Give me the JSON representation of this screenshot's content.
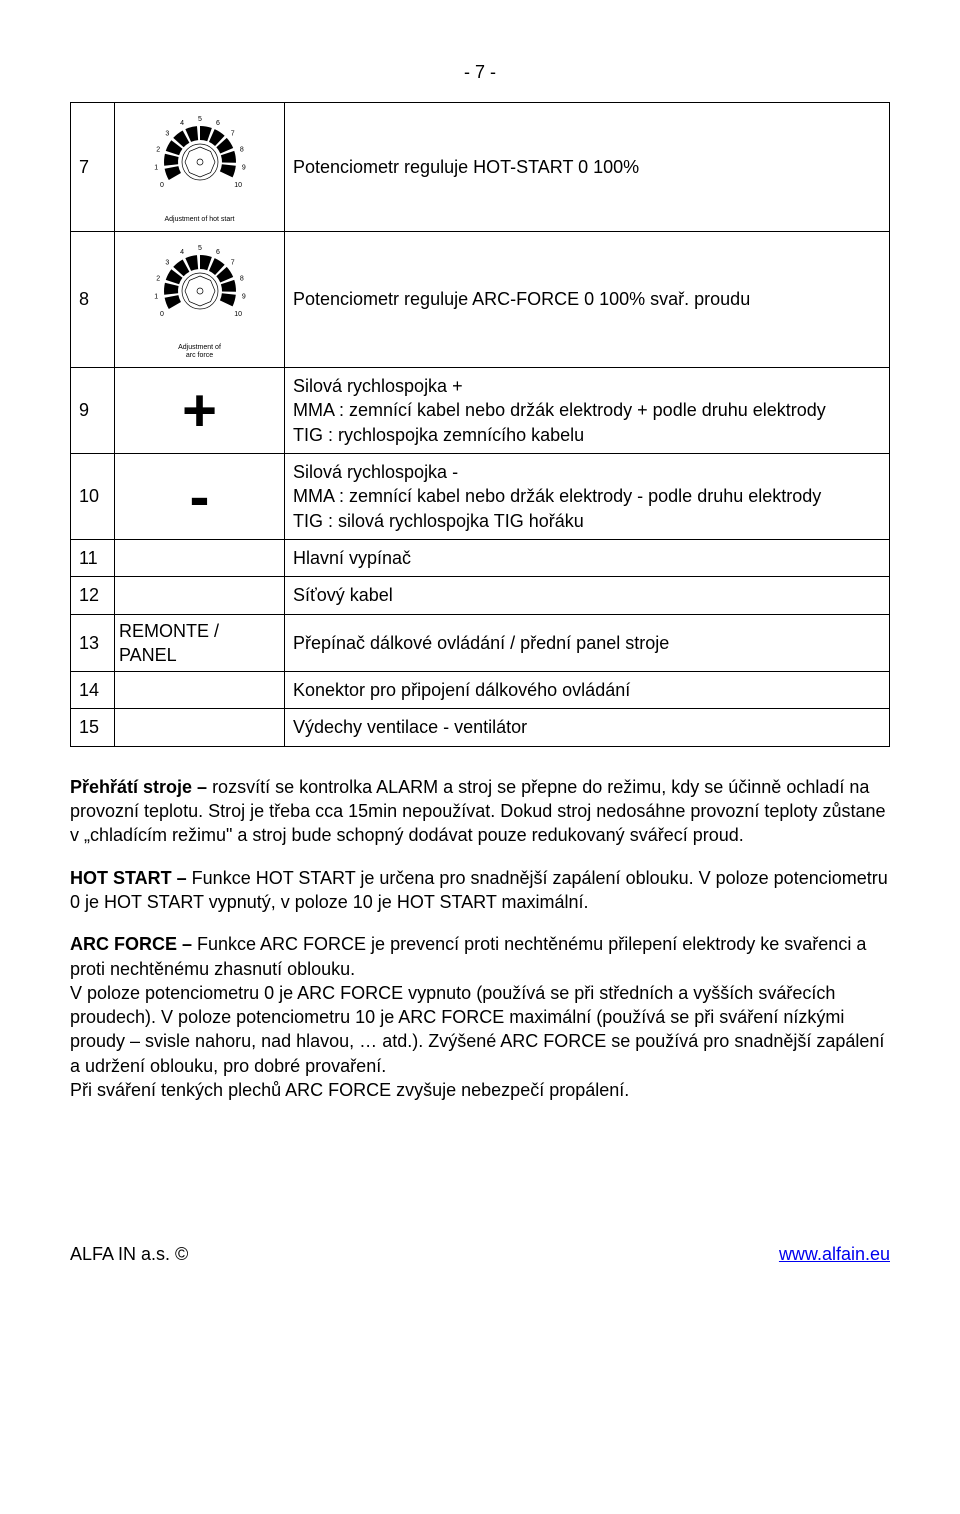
{
  "page_number": "- 7 -",
  "dial": {
    "ticks": [
      "0",
      "1",
      "2",
      "3",
      "4",
      "5",
      "6",
      "7",
      "8",
      "9",
      "10"
    ],
    "caption_hot": "Adjustment of hot start",
    "caption_arc_l1": "Adjustment of",
    "caption_arc_l2": "arc force",
    "tick_color": "#000000",
    "bg_color": "#ffffff"
  },
  "rows": [
    {
      "n": "7",
      "icon": "dial-hot",
      "desc": "Potenciometr reguluje HOT-START 0 100%"
    },
    {
      "n": "8",
      "icon": "dial-arc",
      "desc": "Potenciometr reguluje ARC-FORCE 0 100% svař. proudu"
    },
    {
      "n": "9",
      "icon": "plus",
      "desc": " Silová  rychlospojka +\nMMA : zemnící kabel nebo držák elektrody + podle druhu  elektrody\nTIG : rychlospojka zemnícího kabelu"
    },
    {
      "n": "10",
      "icon": "minus",
      "desc": "  Silová rychlospojka  -\nMMA : zemnící kabel nebo držák elektrody  - podle druhu  elektrody\nTIG : silová rychlospojka TIG  hořáku"
    },
    {
      "n": "11",
      "icon": "",
      "desc": "Hlavní vypínač"
    },
    {
      "n": "12",
      "icon": "",
      "desc": "Síťový kabel"
    },
    {
      "n": "13",
      "icon": "text",
      "icon_text": "REMONTE / PANEL",
      "desc": "Přepínač dálkové ovládání / přední panel stroje"
    },
    {
      "n": "14",
      "icon": "",
      "desc": "Konektor pro připojení dálkového ovládání"
    },
    {
      "n": "15",
      "icon": "",
      "desc": "Výdechy ventilace - ventilátor"
    }
  ],
  "body": {
    "p1": "Přehřátí stroje – rozsvítí se kontrolka ALARM a stroj se přepne do režimu, kdy se účinně ochladí na provozní teplotu. Stroj je třeba cca 15min nepoužívat. Dokud stroj nedosáhne provozní teploty zůstane v „chladícím režimu\" a stroj bude schopný dodávat pouze redukovaný svářecí proud.",
    "p1_bold": "Přehřátí stroje –",
    "p2": "HOT START – Funkce HOT START je určena pro snadnější zapálení oblouku. V poloze potenciometru 0 je HOT START vypnutý, v poloze 10 je HOT START maximální.",
    "p2_bold": "HOT START –",
    "p3": "ARC FORCE – Funkce ARC FORCE je prevencí proti nechtěnému přilepení elektrody ke svařenci a proti nechtěnému zhasnutí oblouku.\nV poloze potenciometru 0 je ARC FORCE vypnuto (používá se při středních a vyšších svářecích proudech). V poloze potenciometru 10 je ARC FORCE maximální (používá se při sváření nízkými proudy – svisle nahoru, nad hlavou, … atd.). Zvýšené ARC FORCE se používá pro snadnější zapálení a udržení oblouku, pro dobré provaření.\nPři sváření tenkých plechů ARC FORCE zvyšuje nebezpečí propálení.",
    "p3_bold": "ARC FORCE –"
  },
  "footer": {
    "left": "ALFA IN a.s. ©",
    "right": "www.alfain.eu",
    "link_color": "#0000ee"
  }
}
